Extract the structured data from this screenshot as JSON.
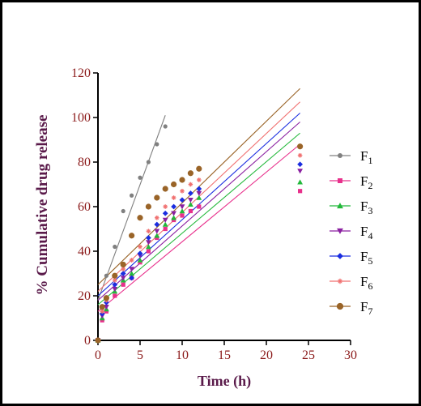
{
  "chart_data": {
    "type": "scatter",
    "xlabel": "Time (h)",
    "ylabel": "% Cumulative drug release",
    "xlim": [
      0,
      30
    ],
    "ylim": [
      0,
      120
    ],
    "xticks": [
      0,
      5,
      10,
      15,
      20,
      25,
      30
    ],
    "yticks": [
      0,
      20,
      40,
      60,
      80,
      100,
      120
    ],
    "legend_position": "right",
    "grid": false,
    "series": [
      {
        "name": "F",
        "sub": "1",
        "color": "#808080",
        "marker": "circle",
        "x": [
          0,
          0.5,
          1,
          2,
          3,
          4,
          5,
          6,
          7,
          8
        ],
        "y": [
          0,
          15,
          29,
          42,
          58,
          65,
          73,
          80,
          88,
          96
        ],
        "fit": {
          "x": [
            0,
            8
          ],
          "y": [
            18,
            101
          ]
        }
      },
      {
        "name": "F",
        "sub": "2",
        "color": "#e8308c",
        "marker": "square",
        "x": [
          0,
          0.5,
          1,
          2,
          3,
          4,
          5,
          6,
          7,
          8,
          9,
          10,
          11,
          12,
          24
        ],
        "y": [
          0,
          9,
          13,
          20,
          25,
          28,
          35,
          40,
          46,
          50,
          54,
          56,
          58,
          60,
          67
        ],
        "fit": {
          "x": [
            0,
            24
          ],
          "y": [
            13,
            88
          ]
        }
      },
      {
        "name": "F",
        "sub": "3",
        "color": "#22b83a",
        "marker": "triangle-up",
        "x": [
          0,
          0.5,
          1,
          2,
          3,
          4,
          5,
          6,
          7,
          8,
          9,
          10,
          11,
          12,
          24
        ],
        "y": [
          0,
          10,
          14,
          22,
          27,
          30,
          36,
          42,
          47,
          52,
          55,
          58,
          61,
          64,
          71
        ],
        "fit": {
          "x": [
            0,
            24
          ],
          "y": [
            16,
            93
          ]
        }
      },
      {
        "name": "F",
        "sub": "4",
        "color": "#8a1fa0",
        "marker": "triangle-down",
        "x": [
          0,
          0.5,
          1,
          2,
          3,
          4,
          5,
          6,
          7,
          8,
          9,
          10,
          11,
          12,
          24
        ],
        "y": [
          0,
          11,
          15,
          23,
          28,
          32,
          38,
          44,
          49,
          54,
          57,
          60,
          63,
          66,
          76
        ],
        "fit": {
          "x": [
            0,
            24
          ],
          "y": [
            18,
            98
          ]
        }
      },
      {
        "name": "F",
        "sub": "5",
        "color": "#1a2de0",
        "marker": "diamond",
        "x": [
          0,
          0.5,
          1,
          2,
          3,
          4,
          5,
          6,
          7,
          8,
          9,
          10,
          11,
          12,
          24
        ],
        "y": [
          0,
          12,
          17,
          25,
          30,
          28,
          39,
          46,
          52,
          57,
          60,
          63,
          66,
          68,
          79
        ],
        "fit": {
          "x": [
            0,
            24
          ],
          "y": [
            20,
            102
          ]
        }
      },
      {
        "name": "F",
        "sub": "6",
        "color": "#f07070",
        "marker": "star",
        "x": [
          0,
          0.5,
          1,
          2,
          3,
          4,
          5,
          6,
          7,
          8,
          9,
          10,
          11,
          12,
          24
        ],
        "y": [
          0,
          13,
          18,
          27,
          32,
          36,
          42,
          49,
          55,
          60,
          64,
          67,
          70,
          72,
          83
        ],
        "fit": {
          "x": [
            0,
            24
          ],
          "y": [
            22,
            107
          ]
        }
      },
      {
        "name": "F",
        "sub": "7",
        "color": "#9a6428",
        "marker": "circle-large",
        "x": [
          0,
          0.5,
          1,
          2,
          3,
          4,
          5,
          6,
          7,
          8,
          9,
          10,
          11,
          12,
          24
        ],
        "y": [
          0,
          15,
          19,
          29,
          34,
          47,
          55,
          60,
          64,
          68,
          70,
          72,
          75,
          77,
          87
        ],
        "fit": {
          "x": [
            0,
            24
          ],
          "y": [
            25,
            113
          ]
        }
      }
    ]
  }
}
